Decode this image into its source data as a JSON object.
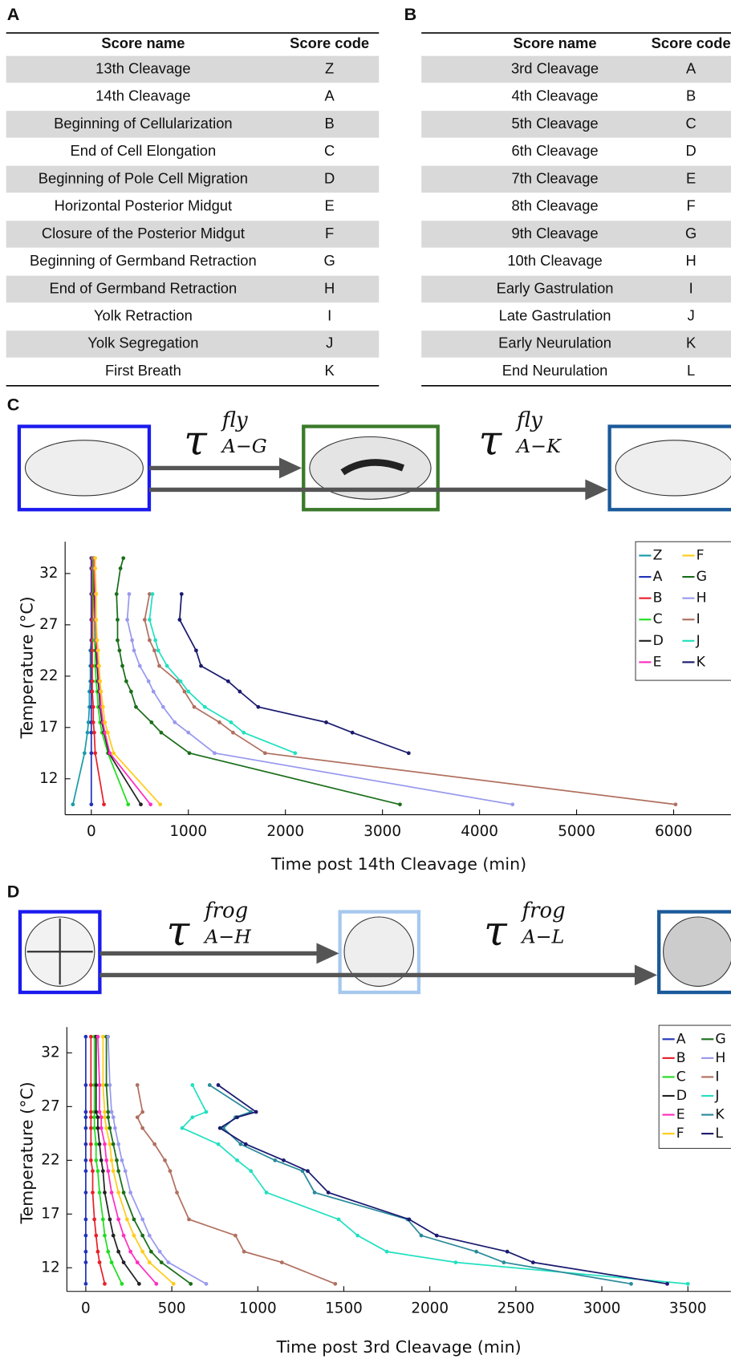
{
  "panels": [
    "A",
    "B",
    "C",
    "D"
  ],
  "tables": [
    {
      "header": [
        "Score name",
        "Score code"
      ],
      "rows": [
        [
          "13th Cleavage",
          "Z"
        ],
        [
          "14th Cleavage",
          "A"
        ],
        [
          "Beginning of Cellularization",
          "B"
        ],
        [
          "End of Cell Elongation",
          "C"
        ],
        [
          "Beginning of Pole Cell Migration",
          "D"
        ],
        [
          "Horizontal Posterior Midgut",
          "E"
        ],
        [
          "Closure of the Posterior Midgut",
          "F"
        ],
        [
          "Beginning of Germband Retraction",
          "G"
        ],
        [
          "End of Germband Retraction",
          "H"
        ],
        [
          "Yolk Retraction",
          "I"
        ],
        [
          "Yolk Segregation",
          "J"
        ],
        [
          "First Breath",
          "K"
        ]
      ]
    },
    {
      "header": [
        "Score name",
        "Score code"
      ],
      "rows": [
        [
          "3rd Cleavage",
          "A"
        ],
        [
          "4th Cleavage",
          "B"
        ],
        [
          "5th Cleavage",
          "C"
        ],
        [
          "6th Cleavage",
          "D"
        ],
        [
          "7th Cleavage",
          "E"
        ],
        [
          "8th Cleavage",
          "F"
        ],
        [
          "9th Cleavage",
          "G"
        ],
        [
          "10th Cleavage",
          "H"
        ],
        [
          "Early Gastrulation",
          "I"
        ],
        [
          "Late Gastrulation",
          "J"
        ],
        [
          "Early Neurulation",
          "K"
        ],
        [
          "End Neurulation",
          "L"
        ]
      ]
    }
  ],
  "diagrams": [
    [
      {
        "symbol": "τ",
        "superscript": "fly",
        "subscript": "A−G"
      },
      {
        "symbol": "τ",
        "superscript": "fly",
        "subscript": "A−K"
      }
    ],
    [
      {
        "symbol": "τ",
        "superscript": "frog",
        "subscript": "A−H"
      },
      {
        "symbol": "τ",
        "superscript": "frog",
        "subscript": "A−L"
      }
    ]
  ],
  "chart_data": [
    {
      "type": "line",
      "x_label": "Time post 14th Cleavage (min)",
      "y_label": "Temperature (°C)",
      "xlim": [
        -270,
        6590
      ],
      "ylim": [
        8.5,
        35.1
      ],
      "xticks": [
        0,
        1000,
        2000,
        3000,
        4000,
        5000,
        6000
      ],
      "yticks": [
        12,
        17,
        22,
        27,
        32
      ],
      "series": [
        {
          "name": "Z",
          "color": "#1a9ba8",
          "x": [
            -190,
            -70,
            -40,
            -30,
            -20,
            -20,
            -10,
            -10,
            -10,
            0,
            0,
            0,
            0,
            0
          ],
          "values": [
            9.5,
            14.5,
            16.5,
            17.5,
            19,
            20.5,
            21.5,
            23,
            24.5,
            25.5,
            27.5,
            30,
            32.5,
            33.5
          ]
        },
        {
          "name": "A",
          "color": "#2233bb",
          "x": [
            0,
            0,
            0,
            0,
            0,
            0,
            0,
            0,
            0,
            0,
            0,
            0,
            0,
            0
          ],
          "values": [
            9.5,
            14.5,
            16.5,
            17.5,
            19,
            20.5,
            21.5,
            23,
            24.5,
            25.5,
            27.5,
            30,
            32.5,
            33.5
          ]
        },
        {
          "name": "B",
          "color": "#e8202a",
          "x": [
            130,
            40,
            30,
            20,
            20,
            10,
            10,
            10,
            10,
            10,
            10,
            10,
            10,
            10
          ],
          "values": [
            9.5,
            14.5,
            16.5,
            17.5,
            19,
            20.5,
            21.5,
            23,
            24.5,
            25.5,
            27.5,
            30,
            32.5,
            33.5
          ]
        },
        {
          "name": "C",
          "color": "#22dd22",
          "x": [
            380,
            170,
            110,
            90,
            70,
            60,
            50,
            40,
            40,
            30,
            30,
            20,
            20,
            20
          ],
          "values": [
            9.5,
            14.5,
            16.5,
            17.5,
            19,
            20.5,
            21.5,
            23,
            24.5,
            25.5,
            27.5,
            30,
            32.5,
            33.5
          ]
        },
        {
          "name": "D",
          "color": "#222222",
          "x": [
            510,
            180,
            130,
            110,
            90,
            80,
            70,
            60,
            50,
            50,
            40,
            30,
            30,
            30
          ],
          "values": [
            9.5,
            14.5,
            16.5,
            17.5,
            19,
            20.5,
            21.5,
            23,
            24.5,
            25.5,
            27.5,
            30,
            32.5,
            33.5
          ]
        },
        {
          "name": "E",
          "color": "#ff2fbf",
          "x": [
            610,
            190,
            140,
            120,
            100,
            90,
            80,
            70,
            60,
            50,
            40,
            40,
            30,
            30
          ],
          "values": [
            9.5,
            14.5,
            16.5,
            17.5,
            19,
            20.5,
            21.5,
            23,
            24.5,
            25.5,
            27.5,
            30,
            32.5,
            33.5
          ]
        },
        {
          "name": "F",
          "color": "#ffcc1a",
          "x": [
            710,
            230,
            170,
            140,
            120,
            100,
            90,
            80,
            70,
            60,
            50,
            50,
            40,
            40
          ],
          "values": [
            9.5,
            14.5,
            16.5,
            17.5,
            19,
            20.5,
            21.5,
            23,
            24.5,
            25.5,
            27.5,
            30,
            32.5,
            33.5
          ]
        },
        {
          "name": "G",
          "color": "#1a6e1a",
          "x": [
            3180,
            1010,
            720,
            620,
            460,
            410,
            360,
            320,
            290,
            270,
            270,
            260,
            300,
            330
          ],
          "values": [
            9.5,
            14.5,
            16.5,
            17.5,
            19,
            20.5,
            21.5,
            23,
            24.5,
            25.5,
            27.5,
            30,
            32.5,
            33.5
          ]
        },
        {
          "name": "H",
          "color": "#9999ee",
          "x": [
            4340,
            1270,
            1000,
            860,
            740,
            640,
            590,
            500,
            440,
            420,
            370,
            390
          ],
          "values": [
            9.5,
            14.5,
            16.5,
            17.5,
            19,
            20.5,
            21.5,
            23,
            24.5,
            25.5,
            27.5,
            30
          ]
        },
        {
          "name": "I",
          "color": "#b07060",
          "x": [
            6020,
            1790,
            1460,
            1320,
            1060,
            960,
            890,
            700,
            650,
            600,
            550,
            600
          ],
          "values": [
            9.5,
            14.5,
            16.5,
            17.5,
            19,
            20.5,
            21.5,
            23,
            24.5,
            25.5,
            27.5,
            30
          ]
        },
        {
          "name": "J",
          "color": "#22e0c0",
          "x": [
            2100,
            1570,
            1440,
            1170,
            1000,
            920,
            780,
            690,
            660,
            600,
            630
          ],
          "values": [
            14.5,
            16.5,
            17.5,
            19,
            20.5,
            21.5,
            23,
            24.5,
            25.5,
            27.5,
            30
          ]
        },
        {
          "name": "K",
          "color": "#1a1a6e",
          "x": [
            3270,
            2690,
            2420,
            1720,
            1530,
            1410,
            1130,
            1080,
            910,
            930
          ],
          "values": [
            14.5,
            16.5,
            17.5,
            19,
            20.5,
            21.5,
            23,
            24.5,
            27.5,
            30
          ]
        }
      ]
    },
    {
      "type": "line",
      "x_label": "Time post 3rd Cleavage (min)",
      "y_label": "Temperature (°C)",
      "xlim": [
        -110,
        3750
      ],
      "ylim": [
        9.8,
        34.4
      ],
      "xticks": [
        0,
        500,
        1000,
        1500,
        2000,
        2500,
        3000,
        3500
      ],
      "yticks": [
        12,
        17,
        22,
        27,
        32
      ],
      "series": [
        {
          "name": "A",
          "color": "#2233bb",
          "x": [
            0,
            0,
            0,
            0,
            0,
            0,
            0,
            0,
            0,
            0,
            0,
            0,
            0,
            0
          ],
          "values": [
            10.5,
            12.5,
            13.5,
            15,
            16.5,
            19,
            21,
            22,
            23.5,
            25,
            26,
            26.5,
            29,
            33.5
          ]
        },
        {
          "name": "B",
          "color": "#e8202a",
          "x": [
            110,
            80,
            70,
            60,
            50,
            40,
            40,
            30,
            30,
            30,
            30,
            30,
            30,
            30
          ],
          "values": [
            10.5,
            12.5,
            13.5,
            15,
            16.5,
            19,
            21,
            22,
            23.5,
            25,
            26,
            26.5,
            29,
            33.5
          ]
        },
        {
          "name": "C",
          "color": "#22dd22",
          "x": [
            210,
            150,
            130,
            110,
            100,
            80,
            70,
            60,
            60,
            50,
            50,
            50,
            50,
            50
          ],
          "values": [
            10.5,
            12.5,
            13.5,
            15,
            16.5,
            19,
            21,
            22,
            23.5,
            25,
            26,
            26.5,
            29,
            33.5
          ]
        },
        {
          "name": "D",
          "color": "#222222",
          "x": [
            310,
            220,
            190,
            160,
            140,
            110,
            100,
            90,
            80,
            70,
            70,
            60,
            60,
            60
          ],
          "values": [
            10.5,
            12.5,
            13.5,
            15,
            16.5,
            19,
            21,
            22,
            23.5,
            25,
            26,
            26.5,
            29,
            33.5
          ]
        },
        {
          "name": "E",
          "color": "#ff2fbf",
          "x": [
            410,
            300,
            260,
            220,
            190,
            150,
            130,
            120,
            110,
            90,
            90,
            80,
            80,
            70
          ],
          "values": [
            10.5,
            12.5,
            13.5,
            15,
            16.5,
            19,
            21,
            22,
            23.5,
            25,
            26,
            26.5,
            29,
            33.5
          ]
        },
        {
          "name": "F",
          "color": "#ffcc1a",
          "x": [
            510,
            370,
            330,
            280,
            240,
            190,
            160,
            150,
            140,
            120,
            110,
            110,
            100,
            100
          ],
          "values": [
            10.5,
            12.5,
            13.5,
            15,
            16.5,
            19,
            21,
            22,
            23.5,
            25,
            26,
            26.5,
            29,
            33.5
          ]
        },
        {
          "name": "G",
          "color": "#1a6e1a",
          "x": [
            610,
            440,
            380,
            330,
            280,
            220,
            190,
            180,
            160,
            140,
            130,
            130,
            120,
            120
          ],
          "values": [
            10.5,
            12.5,
            13.5,
            15,
            16.5,
            19,
            21,
            22,
            23.5,
            25,
            26,
            26.5,
            29,
            33.5
          ]
        },
        {
          "name": "H",
          "color": "#9999ee",
          "x": [
            700,
            480,
            430,
            370,
            330,
            260,
            230,
            210,
            190,
            170,
            160,
            150,
            140,
            130
          ],
          "values": [
            10.5,
            12.5,
            13.5,
            15,
            16.5,
            19,
            21,
            22,
            23.5,
            25,
            26,
            26.5,
            29,
            33.5
          ]
        },
        {
          "name": "I",
          "color": "#b07060",
          "x": [
            1450,
            1140,
            920,
            870,
            600,
            530,
            490,
            460,
            400,
            330,
            300,
            330,
            300
          ],
          "values": [
            10.5,
            12.5,
            13.5,
            15,
            16.5,
            19,
            21,
            22,
            23.5,
            25,
            26,
            26.5,
            29
          ]
        },
        {
          "name": "J",
          "color": "#22e0c0",
          "x": [
            3500,
            2150,
            1750,
            1580,
            1470,
            1050,
            960,
            880,
            770,
            560,
            620,
            700,
            620
          ],
          "values": [
            10.5,
            12.5,
            13.5,
            15,
            16.5,
            19,
            21,
            22,
            23.5,
            25,
            26,
            26.5,
            29
          ]
        },
        {
          "name": "K",
          "color": "#2a8a9a",
          "x": [
            3170,
            2430,
            2270,
            1950,
            1870,
            1330,
            1260,
            1100,
            900,
            800,
            870,
            960,
            720
          ],
          "values": [
            10.5,
            12.5,
            13.5,
            15,
            16.5,
            19,
            21,
            22,
            23.5,
            25,
            26,
            26.5,
            29
          ]
        },
        {
          "name": "L",
          "color": "#1a1a70",
          "x": [
            3380,
            2600,
            2450,
            2040,
            1880,
            1410,
            1290,
            1150,
            930,
            780,
            880,
            990,
            770
          ],
          "values": [
            10.5,
            12.5,
            13.5,
            15,
            16.5,
            19,
            21,
            22,
            23.5,
            25,
            26,
            26.5,
            29
          ]
        }
      ]
    }
  ]
}
